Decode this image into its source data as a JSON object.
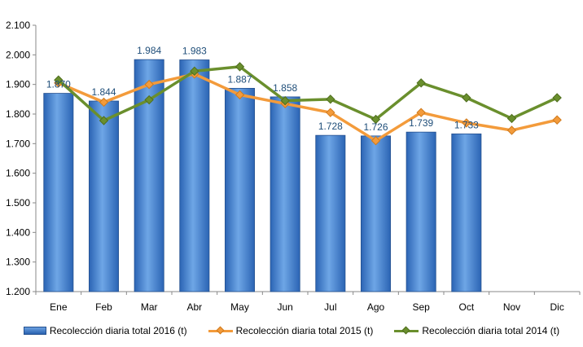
{
  "chart_data": {
    "type": "bar",
    "categories": [
      "Ene",
      "Feb",
      "Mar",
      "Abr",
      "May",
      "Jun",
      "Jul",
      "Ago",
      "Sep",
      "Oct",
      "Nov",
      "Dic"
    ],
    "ylim": [
      1200,
      2100
    ],
    "yticks": [
      1200,
      1300,
      1400,
      1500,
      1600,
      1700,
      1800,
      1900,
      2000,
      2100
    ],
    "ytick_labels": [
      "1.200",
      "1.300",
      "1.400",
      "1.500",
      "1.600",
      "1.700",
      "1.800",
      "1.900",
      "2.000",
      "2.100"
    ],
    "grid": false,
    "legend_position": "bottom",
    "series": [
      {
        "name": "Recolección diaria total 2016 (t)",
        "type": "bar",
        "color": "#3a78c8",
        "values": [
          1870,
          1844,
          1984,
          1983,
          1887,
          1858,
          1728,
          1726,
          1739,
          1733,
          null,
          null
        ],
        "data_labels": [
          "1.870",
          "1.844",
          "1.984",
          "1.983",
          "1.887",
          "1.858",
          "1.728",
          "1.726",
          "1.739",
          "1.733",
          "",
          ""
        ]
      },
      {
        "name": "Recolección diaria total 2015 (t)",
        "type": "line",
        "color": "#f39b3b",
        "values": [
          1905,
          1840,
          1900,
          1935,
          1865,
          1835,
          1805,
          1710,
          1805,
          1770,
          1745,
          1780
        ]
      },
      {
        "name": "Recolección diaria total 2014 (t)",
        "type": "line",
        "color": "#6a8f2d",
        "values": [
          1915,
          1778,
          1848,
          1945,
          1960,
          1845,
          1850,
          1782,
          1905,
          1855,
          1785,
          1855
        ]
      }
    ]
  }
}
